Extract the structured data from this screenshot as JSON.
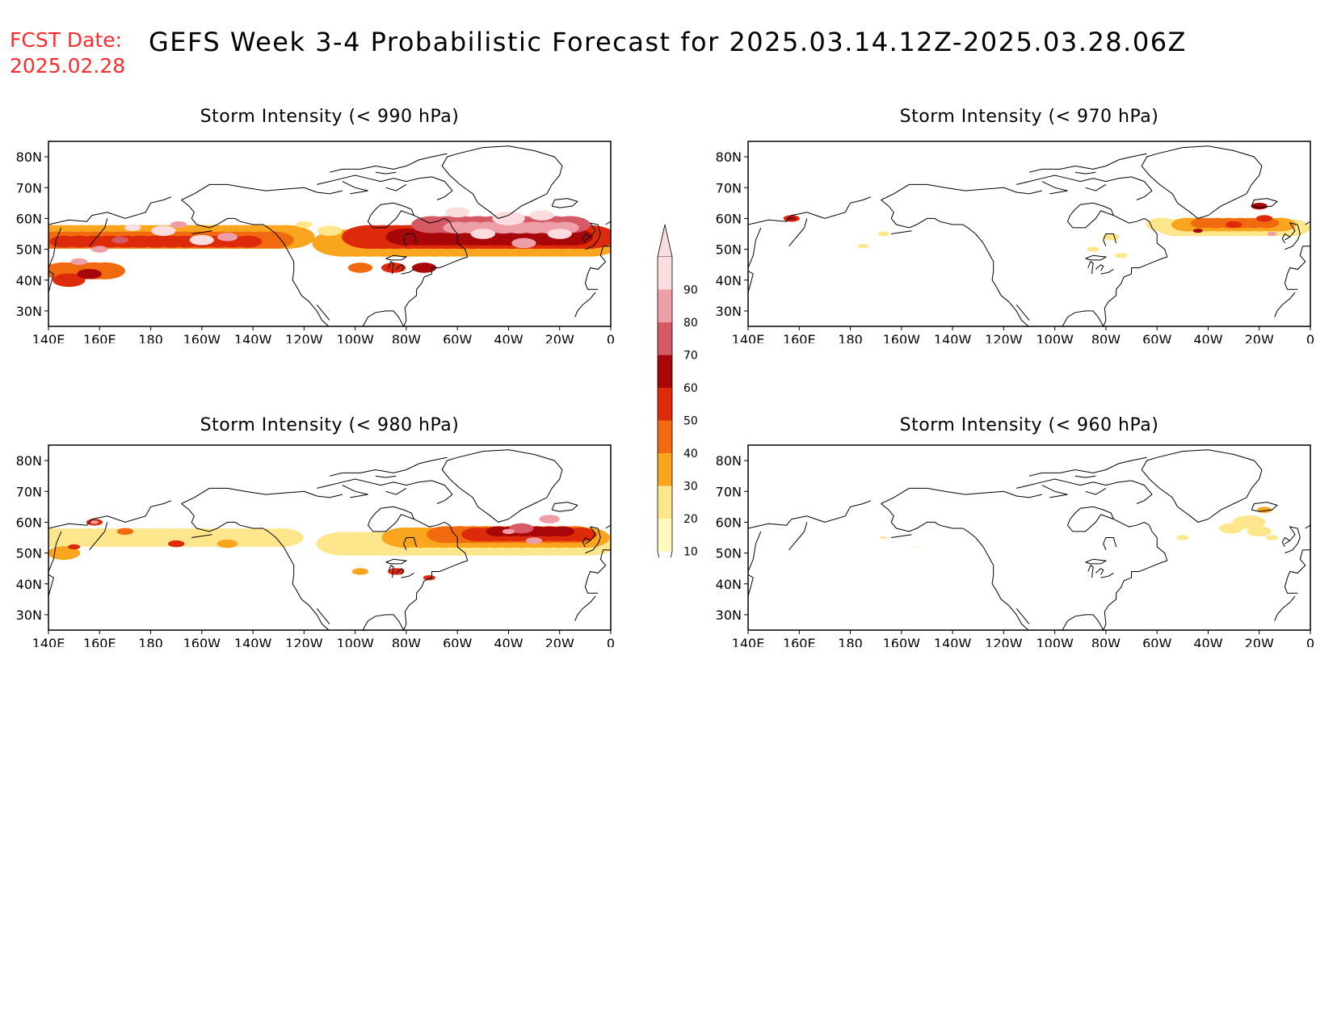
{
  "header": {
    "fcst_label": "FCST Date:",
    "fcst_date": "2025.02.28",
    "title": "GEFS Week 3-4 Probabilistic Forecast for 2025.03.14.12Z-2025.03.28.06Z"
  },
  "axes": {
    "lat_labels": [
      "80N",
      "70N",
      "60N",
      "50N",
      "40N",
      "30N"
    ],
    "lon_labels": [
      "140E",
      "160E",
      "180",
      "160W",
      "140W",
      "120W",
      "100W",
      "80W",
      "60W",
      "40W",
      "20W",
      "0"
    ]
  },
  "colorbar": {
    "levels": [
      "10",
      "20",
      "30",
      "40",
      "50",
      "60",
      "70",
      "80",
      "90"
    ],
    "colors": [
      "#fff9c0",
      "#fde68c",
      "#f9a51e",
      "#f26a0f",
      "#dd2a0b",
      "#a8070a",
      "#d65a66",
      "#ee9ea6",
      "#fbdde0"
    ]
  },
  "panels": [
    {
      "title": "Storm Intensity (< 990 hPa)",
      "threshold_hPa": 990
    },
    {
      "title": "Storm Intensity (< 970 hPa)",
      "threshold_hPa": 970
    },
    {
      "title": "Storm Intensity (< 980 hPa)",
      "threshold_hPa": 980
    },
    {
      "title": "Storm Intensity (< 960 hPa)",
      "threshold_hPa": 960
    }
  ]
}
